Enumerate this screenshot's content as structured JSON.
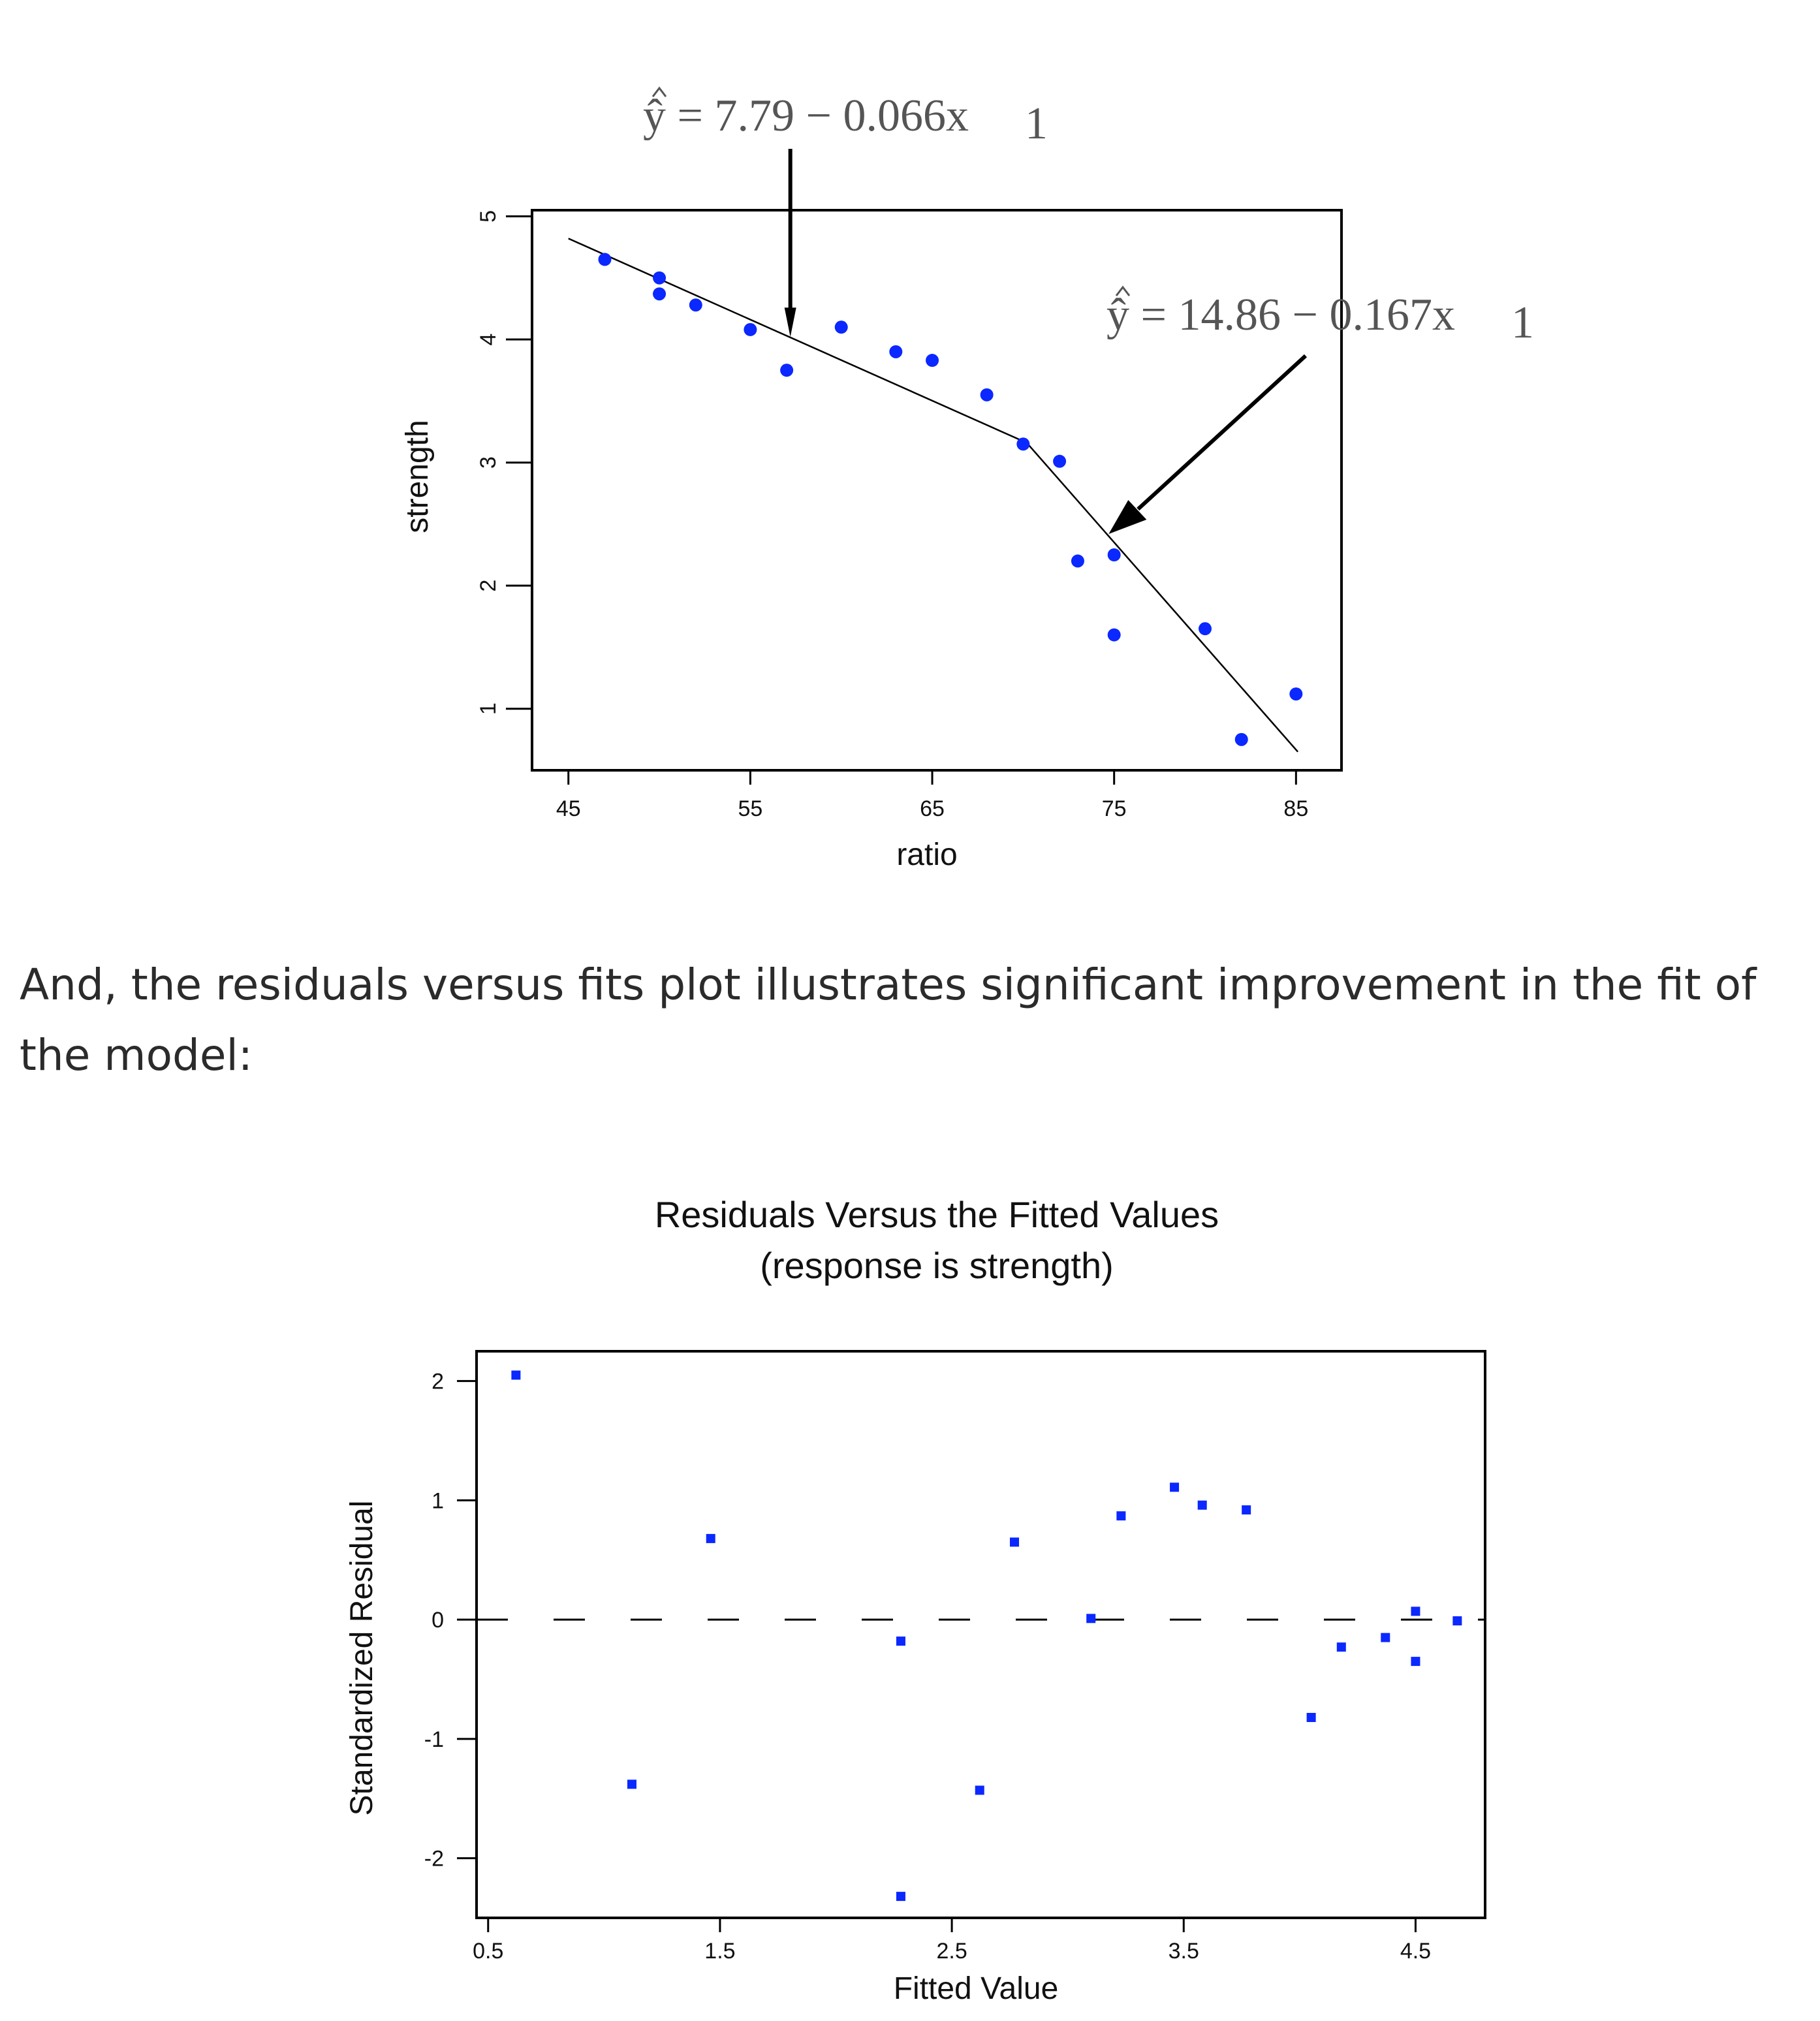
{
  "caption": "And, the residuals versus fits plot illustrates significant improvement in the fit of the model:",
  "colors": {
    "points": "#0a28ff",
    "lines": "#000000",
    "equation": "#555555"
  },
  "chart_data": [
    {
      "type": "scatter",
      "title": "",
      "xlabel": "ratio",
      "ylabel": "strength",
      "xlim": [
        43,
        87.5
      ],
      "ylim": [
        0.5,
        5.05
      ],
      "xticks": [
        "45",
        "55",
        "65",
        "75",
        "85"
      ],
      "yticks": [
        "1",
        "2",
        "3",
        "4",
        "5"
      ],
      "grid": false,
      "series": [
        {
          "x": [
            47,
            50,
            50,
            52,
            55,
            57,
            60,
            63,
            65,
            68,
            70,
            72,
            73,
            75,
            75,
            80,
            82,
            85
          ],
          "y": [
            4.65,
            4.5,
            4.37,
            4.28,
            4.08,
            3.75,
            4.1,
            3.9,
            3.83,
            3.55,
            3.15,
            3.01,
            2.2,
            2.25,
            1.6,
            1.65,
            0.75,
            1.12
          ]
        }
      ],
      "fit_lines": [
        {
          "x": [
            45,
            70.2
          ],
          "y": [
            4.82,
            3.16
          ]
        },
        {
          "x": [
            70.2,
            85.1
          ],
          "y": [
            3.16,
            0.65
          ]
        }
      ],
      "annotations": [
        {
          "text": "ŷ = 7.79 − 0.066x",
          "subscript": "1",
          "points_to": [
            57.2,
            4.02
          ]
        },
        {
          "text": "ŷ = 14.86 − 0.167x",
          "subscript": "1",
          "points_to": [
            74.7,
            2.42
          ]
        }
      ]
    },
    {
      "type": "scatter",
      "title": "Residuals Versus the Fitted Values",
      "subtitle": "(response is strength)",
      "xlabel": "Fitted Value",
      "ylabel": "Standardized Residual",
      "xlim": [
        0.45,
        4.8
      ],
      "ylim": [
        -2.5,
        2.25
      ],
      "xticks": [
        "0.5",
        "1.5",
        "2.5",
        "3.5",
        "4.5"
      ],
      "yticks": [
        "2",
        "1",
        "0",
        "-1",
        "-2"
      ],
      "grid": false,
      "reference_line": {
        "y": 0,
        "style": "dashed"
      },
      "series": [
        {
          "x": [
            0.62,
            1.12,
            1.46,
            2.28,
            2.28,
            2.62,
            2.77,
            3.1,
            3.23,
            3.46,
            3.58,
            3.77,
            4.05,
            4.18,
            4.37,
            4.5,
            4.5,
            4.68
          ],
          "y": [
            2.05,
            -1.38,
            0.68,
            -0.18,
            -2.32,
            -1.43,
            0.65,
            0.01,
            0.87,
            1.11,
            0.96,
            0.92,
            -0.82,
            -0.23,
            -0.15,
            0.07,
            -0.35,
            -0.01
          ]
        }
      ]
    }
  ]
}
